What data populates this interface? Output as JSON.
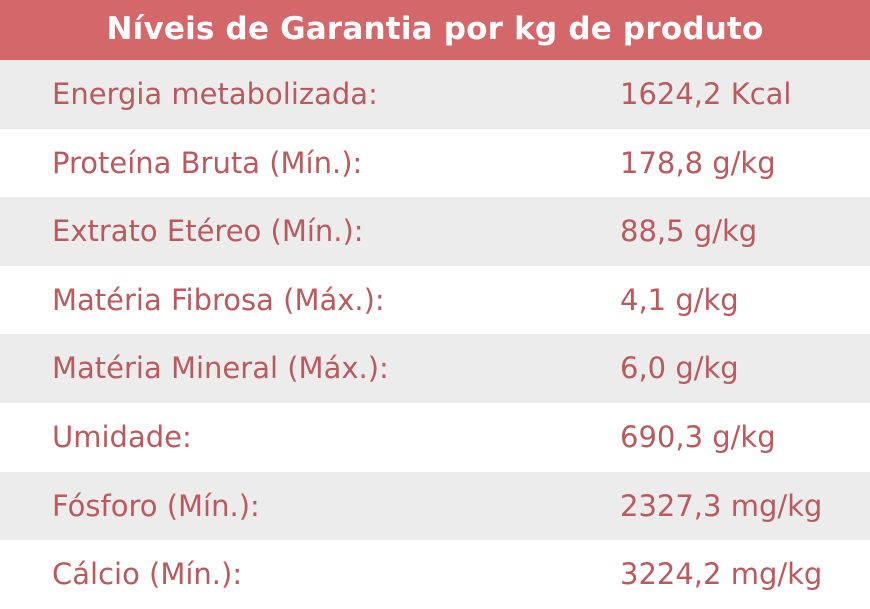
{
  "header": {
    "title": "Níveis de Garantia por kg de produto"
  },
  "colors": {
    "header_background": "#d4676a",
    "header_text": "#ffffff",
    "row_text": "#b85a5e",
    "row_shaded": "#ececec",
    "row_plain": "#ffffff"
  },
  "rows": [
    {
      "label": "Energia metabolizada:",
      "value": "1624,2 Kcal"
    },
    {
      "label": "Proteína Bruta (Mín.):",
      "value": "178,8 g/kg"
    },
    {
      "label": "Extrato Etéreo (Mín.):",
      "value": "88,5 g/kg"
    },
    {
      "label": "Matéria Fibrosa (Máx.):",
      "value": "4,1 g/kg"
    },
    {
      "label": "Matéria Mineral (Máx.):",
      "value": "6,0 g/kg"
    },
    {
      "label": "Umidade:",
      "value": "690,3 g/kg"
    },
    {
      "label": "Fósforo (Mín.):",
      "value": "2327,3 mg/kg"
    },
    {
      "label": "Cálcio (Mín.):",
      "value": "3224,2 mg/kg"
    }
  ]
}
